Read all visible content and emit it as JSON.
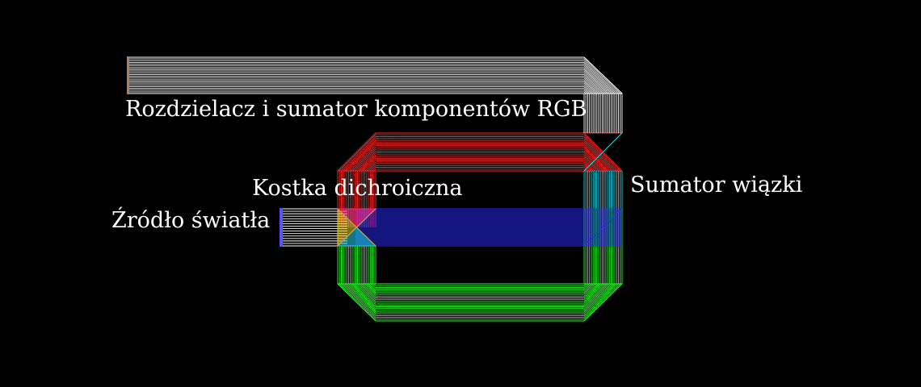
{
  "labels": {
    "title": "Rozdzielacz i sumator komponentów RGB",
    "cube": "Kostka dichroiczna",
    "combiner": "Sumator wiązki",
    "source": "Źródło światła"
  },
  "colors": {
    "background": "#000000",
    "text": "#ffffff",
    "white_beam": "#ffffff",
    "red_beam": "#ff2a2a",
    "green_beam": "#2aff2a",
    "blue_beam": "#2a2aff",
    "cyan_beam": "#22d8e8",
    "yellow_beam": "#e8c820",
    "magenta_beam": "#ff3088",
    "source_emitter": "#5555ff",
    "output_edge": "#b08060"
  }
}
